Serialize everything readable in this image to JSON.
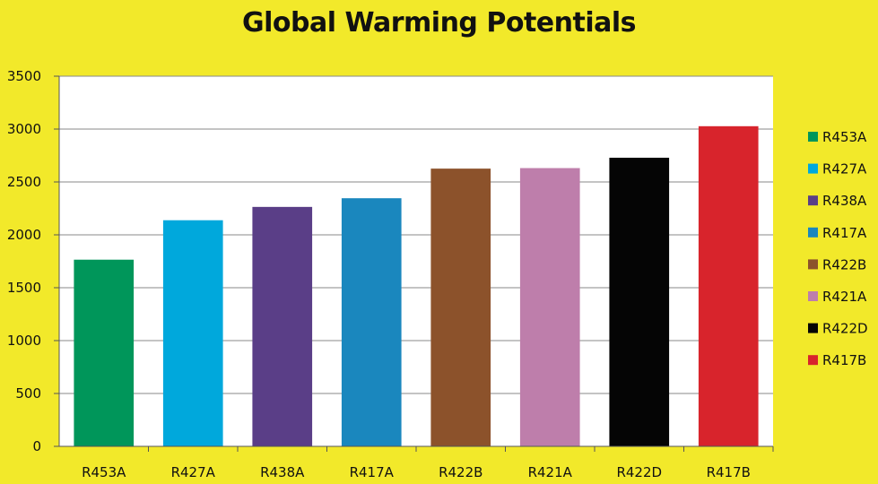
{
  "chart_data": {
    "type": "bar",
    "title": "Global Warming Potentials",
    "xlabel": "",
    "ylabel": "",
    "categories": [
      "R453A",
      "R427A",
      "R438A",
      "R417A",
      "R422B",
      "R421A",
      "R422D",
      "R417B"
    ],
    "values": [
      1765,
      2138,
      2264,
      2346,
      2626,
      2631,
      2729,
      3027
    ],
    "colors": [
      "#00965a",
      "#00a8dc",
      "#5a3e87",
      "#1a87be",
      "#8c522b",
      "#be7eab",
      "#050505",
      "#d8242c"
    ],
    "ylim": [
      0,
      3500
    ],
    "yticks": [
      "0",
      "500",
      "1000",
      "1500",
      "2000",
      "2500",
      "3000",
      "3500"
    ],
    "grid": true,
    "legend": "right",
    "background_color": "#f2e92a",
    "plot_background_color": "#ffffff"
  }
}
